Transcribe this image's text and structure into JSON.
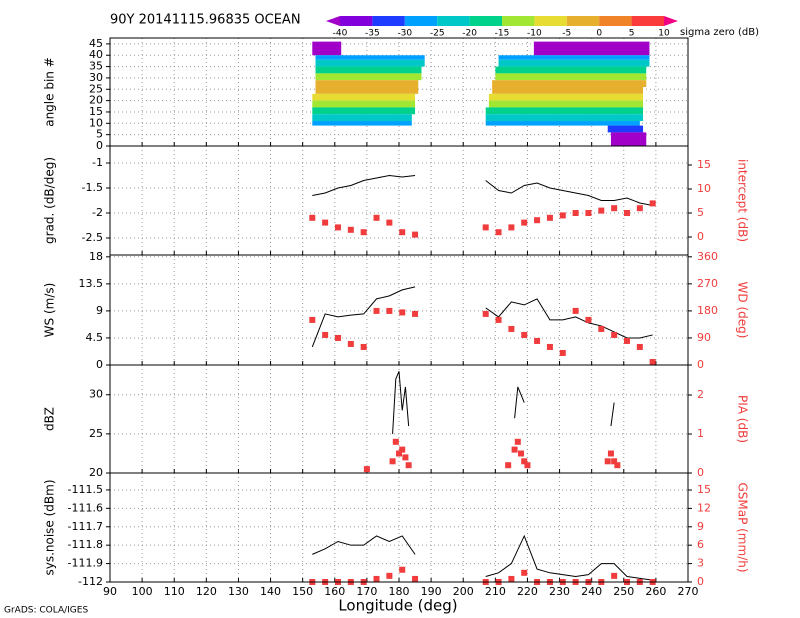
{
  "title": "90Y 20141115.96835 OCEAN",
  "footer": "GrADS: COLA/IGES",
  "x_label": "Longitude (deg)",
  "xlim": [
    90,
    270
  ],
  "xticks": [
    90,
    100,
    110,
    120,
    130,
    140,
    150,
    160,
    170,
    180,
    190,
    200,
    210,
    220,
    230,
    240,
    250,
    260,
    270
  ],
  "colorbar": {
    "label": "sigma zero (dB)",
    "ticks": [
      -40,
      -35,
      -30,
      -25,
      -20,
      -15,
      -10,
      -5,
      0,
      5,
      10
    ],
    "colors": [
      "#a000c8",
      "#8200dc",
      "#1e3cff",
      "#00a0ff",
      "#00c8c8",
      "#00d28c",
      "#a0e632",
      "#e6dc32",
      "#e6af2d",
      "#f08228",
      "#fa3c3c",
      "#f00082"
    ]
  },
  "chart_data": [
    {
      "type": "heatmap",
      "ylabel": "angle bin #",
      "ylim": [
        0,
        47.6
      ],
      "yticks": [
        0,
        5,
        10,
        15,
        20,
        25,
        30,
        35,
        40,
        45
      ],
      "rows": [
        {
          "y0": 40,
          "y1": 46,
          "x0": 153,
          "x1": 162,
          "value": -42
        },
        {
          "y0": 38,
          "y1": 40,
          "x0": 154,
          "x1": 188,
          "value": -30
        },
        {
          "y0": 35,
          "y1": 38,
          "x0": 154,
          "x1": 188,
          "value": -25
        },
        {
          "y0": 32,
          "y1": 35,
          "x0": 154,
          "x1": 187,
          "value": -20
        },
        {
          "y0": 29,
          "y1": 32,
          "x0": 154,
          "x1": 187,
          "value": -12
        },
        {
          "y0": 26,
          "y1": 29,
          "x0": 154,
          "x1": 186,
          "value": -5
        },
        {
          "y0": 23,
          "y1": 26,
          "x0": 154,
          "x1": 186,
          "value": -2
        },
        {
          "y0": 20,
          "y1": 23,
          "x0": 153,
          "x1": 185,
          "value": -7
        },
        {
          "y0": 17,
          "y1": 20,
          "x0": 153,
          "x1": 185,
          "value": -15
        },
        {
          "y0": 14,
          "y1": 17,
          "x0": 153,
          "x1": 185,
          "value": -20
        },
        {
          "y0": 11,
          "y1": 14,
          "x0": 153,
          "x1": 184,
          "value": -25
        },
        {
          "y0": 9,
          "y1": 11,
          "x0": 153,
          "x1": 184,
          "value": -30
        },
        {
          "y0": 40,
          "y1": 46,
          "x0": 222,
          "x1": 258,
          "value": -42
        },
        {
          "y0": 38,
          "y1": 40,
          "x0": 211,
          "x1": 258,
          "value": -30
        },
        {
          "y0": 35,
          "y1": 38,
          "x0": 211,
          "x1": 258,
          "value": -25
        },
        {
          "y0": 32,
          "y1": 35,
          "x0": 210,
          "x1": 257,
          "value": -20
        },
        {
          "y0": 29,
          "y1": 32,
          "x0": 210,
          "x1": 257,
          "value": -12
        },
        {
          "y0": 26,
          "y1": 29,
          "x0": 209,
          "x1": 257,
          "value": -5
        },
        {
          "y0": 23,
          "y1": 26,
          "x0": 209,
          "x1": 256,
          "value": -2
        },
        {
          "y0": 20,
          "y1": 23,
          "x0": 208,
          "x1": 256,
          "value": -7
        },
        {
          "y0": 17,
          "y1": 20,
          "x0": 208,
          "x1": 256,
          "value": -15
        },
        {
          "y0": 14,
          "y1": 17,
          "x0": 207,
          "x1": 256,
          "value": -20
        },
        {
          "y0": 11,
          "y1": 14,
          "x0": 207,
          "x1": 256,
          "value": -25
        },
        {
          "y0": 9,
          "y1": 11,
          "x0": 207,
          "x1": 255,
          "value": -30
        },
        {
          "y0": 6,
          "y1": 9,
          "x0": 245,
          "x1": 256,
          "value": -35
        },
        {
          "y0": 0,
          "y1": 6,
          "x0": 246,
          "x1": 257,
          "value": -42
        }
      ]
    },
    {
      "type": "line",
      "ylabel": "grad. (dB/deg)",
      "ylim": [
        -2.84,
        -0.66
      ],
      "yticks": [
        -2.5,
        -2,
        -1.5,
        -1
      ],
      "y2label": "intercept (dB)",
      "y2lim": [
        -3.75,
        18.96
      ],
      "y2ticks": [
        0,
        5,
        10,
        15
      ],
      "x": [
        153,
        157,
        161,
        165,
        169,
        173,
        177,
        181,
        185,
        197,
        207,
        211,
        215,
        219,
        223,
        227,
        231,
        235,
        239,
        243,
        247,
        251,
        255,
        259
      ],
      "series": [
        {
          "color": "#000000",
          "style": "line",
          "values": [
            -1.65,
            -1.6,
            -1.5,
            -1.45,
            -1.35,
            -1.3,
            -1.25,
            -1.28,
            -1.25,
            null,
            -1.35,
            -1.55,
            -1.6,
            -1.45,
            -1.4,
            -1.5,
            -1.55,
            -1.6,
            -1.65,
            -1.75,
            -1.75,
            -1.7,
            -1.8,
            -1.85
          ]
        },
        {
          "color": "#f03c3c",
          "style": "points",
          "axis": "y2",
          "values": [
            4,
            3,
            2,
            1.5,
            1,
            4,
            3,
            1,
            0.5,
            null,
            2,
            1,
            2,
            3,
            3.5,
            4,
            4.5,
            5,
            5,
            5.5,
            6,
            5,
            6,
            7
          ]
        }
      ]
    },
    {
      "type": "line",
      "ylabel": "WS (m/s)",
      "ylim": [
        0,
        18.3
      ],
      "yticks": [
        0,
        4.5,
        9,
        13.5,
        18
      ],
      "y2label": "WD (deg)",
      "y2lim": [
        0,
        366
      ],
      "y2ticks": [
        0,
        90,
        180,
        270,
        360
      ],
      "x": [
        153,
        157,
        161,
        165,
        169,
        173,
        177,
        181,
        185,
        197,
        207,
        211,
        215,
        219,
        223,
        227,
        231,
        235,
        239,
        243,
        247,
        251,
        255,
        259
      ],
      "series": [
        {
          "color": "#000000",
          "style": "line",
          "values": [
            3,
            8.5,
            8,
            8.3,
            8.5,
            11,
            11.5,
            12.5,
            13,
            null,
            9.5,
            8,
            10.5,
            10,
            11,
            7.5,
            7.5,
            8,
            7,
            6.5,
            5.5,
            4.5,
            4.5,
            5
          ]
        },
        {
          "color": "#f03c3c",
          "style": "points",
          "axis": "y2",
          "values": [
            150,
            100,
            90,
            70,
            60,
            180,
            180,
            175,
            170,
            null,
            170,
            150,
            120,
            100,
            80,
            60,
            40,
            180,
            150,
            120,
            100,
            80,
            60,
            10
          ]
        }
      ]
    },
    {
      "type": "line",
      "ylabel": "dBZ",
      "ylim": [
        20,
        33.8
      ],
      "yticks": [
        20,
        25,
        30
      ],
      "y2label": "PIA (dB)",
      "y2lim": [
        0,
        2.77
      ],
      "y2ticks": [
        0,
        1,
        2
      ],
      "x": [
        170,
        178,
        179,
        180,
        181,
        182,
        183,
        190,
        214,
        216,
        217,
        218,
        219,
        220,
        245,
        246,
        247,
        248
      ],
      "series": [
        {
          "color": "#000000",
          "style": "line",
          "values": [
            null,
            25,
            32,
            33,
            28,
            31,
            26,
            null,
            null,
            27,
            31,
            30,
            29,
            null,
            null,
            26,
            29,
            null
          ]
        },
        {
          "color": "#f03c3c",
          "style": "points",
          "axis": "y2",
          "values": [
            0.1,
            0.3,
            0.8,
            0.5,
            0.6,
            0.4,
            0.2,
            null,
            0.2,
            0.6,
            0.8,
            0.5,
            0.3,
            0.2,
            0.3,
            0.5,
            0.3,
            0.2
          ]
        }
      ]
    },
    {
      "type": "line",
      "ylabel": "sys.noise (dBm)",
      "ylim": [
        -112,
        -111.408
      ],
      "yticks": [
        -112,
        -111.9,
        -111.8,
        -111.7,
        -111.6,
        -111.5
      ],
      "y2label": "GSMaP (mm/h)",
      "y2lim": [
        0,
        17.77
      ],
      "y2ticks": [
        0,
        3,
        6,
        9,
        12,
        15
      ],
      "x": [
        153,
        157,
        161,
        165,
        169,
        173,
        177,
        181,
        185,
        197,
        207,
        211,
        215,
        219,
        223,
        227,
        231,
        235,
        239,
        243,
        247,
        251,
        255,
        259
      ],
      "series": [
        {
          "color": "#000000",
          "style": "line",
          "values": [
            -111.85,
            -111.82,
            -111.78,
            -111.8,
            -111.8,
            -111.75,
            -111.78,
            -111.75,
            -111.85,
            null,
            -111.97,
            -111.95,
            -111.9,
            -111.75,
            -111.93,
            -111.95,
            -111.96,
            -111.97,
            -111.96,
            -111.9,
            -111.9,
            -111.97,
            -111.98,
            -111.99
          ]
        },
        {
          "color": "#f03c3c",
          "style": "points",
          "axis": "y2",
          "values": [
            0,
            0,
            0,
            0,
            0,
            0.5,
            1,
            2,
            0.5,
            null,
            0,
            0,
            0.5,
            1.5,
            0,
            0,
            0,
            0,
            0,
            0,
            1,
            0,
            0,
            0
          ]
        }
      ]
    }
  ]
}
